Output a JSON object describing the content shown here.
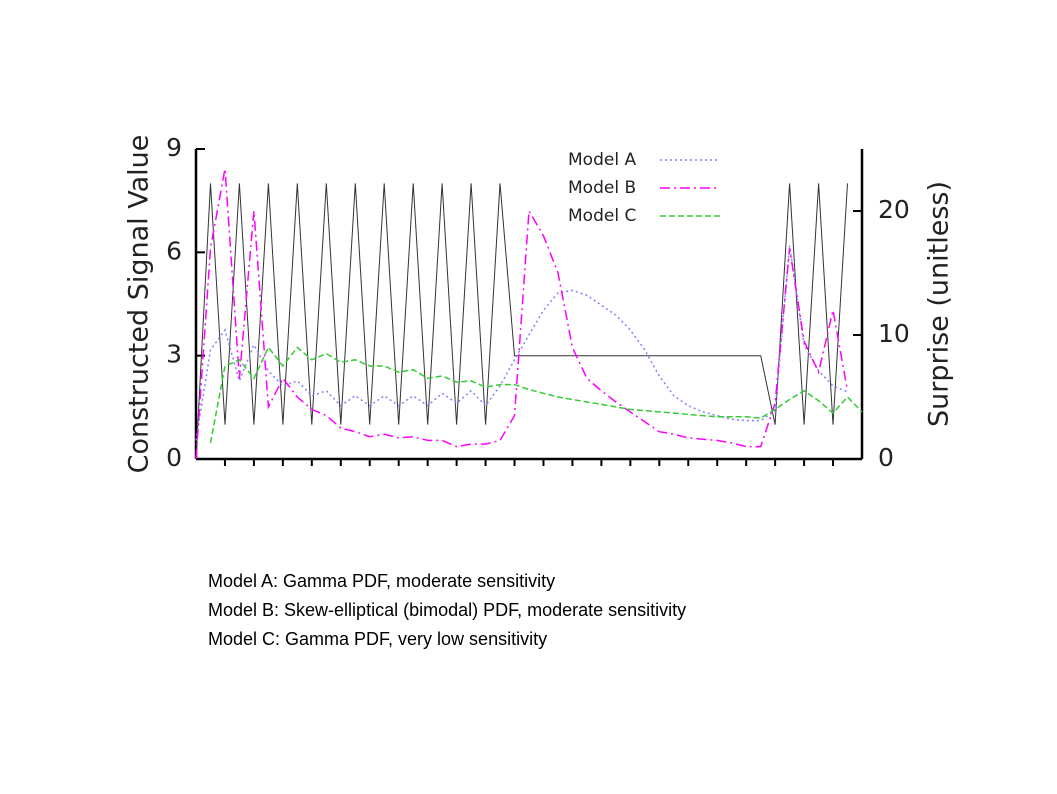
{
  "chart_data": {
    "type": "line",
    "ylabel": "Constructed Signal Value",
    "y2label": "Surprise (unitless)",
    "x": [
      0,
      1,
      2,
      3,
      4,
      5,
      6,
      7,
      8,
      9,
      10,
      11,
      12,
      13,
      14,
      15,
      16,
      17,
      18,
      19,
      20,
      21,
      22,
      23,
      24,
      25,
      26,
      27,
      28,
      29,
      30,
      31,
      32,
      33,
      34,
      35,
      36,
      37,
      38,
      39,
      40,
      41,
      42,
      43,
      44,
      45,
      46
    ],
    "xlim": [
      0,
      46
    ],
    "xticks": [
      2,
      4,
      6,
      8,
      10,
      12,
      14,
      16,
      18,
      20,
      22,
      24,
      26,
      28,
      30,
      32,
      34,
      36,
      38,
      40,
      42,
      44
    ],
    "ylim": [
      0,
      9
    ],
    "yticks": [
      0,
      3,
      6,
      9
    ],
    "y2lim": [
      0,
      25
    ],
    "y2ticks": [
      0,
      10,
      20
    ],
    "legend": "upper right",
    "series": [
      {
        "color": "#333333",
        "dash": "solid",
        "axis": "y",
        "values": [
          0,
          8,
          1,
          8,
          1,
          8,
          1,
          8,
          1,
          8,
          1,
          8,
          1,
          8,
          1,
          8,
          1,
          8,
          1,
          8,
          1,
          8,
          3,
          3,
          3,
          3,
          3,
          3,
          3,
          3,
          3,
          3,
          3,
          3,
          3,
          3,
          3,
          3,
          3,
          3,
          1,
          8,
          1,
          8,
          1,
          8,
          null
        ]
      },
      {
        "name": "Model A",
        "color": "#8080ff",
        "dash": "dotted",
        "axis": "y2",
        "values": [
          1.5,
          8.8,
          10.4,
          6.3,
          9.2,
          7.1,
          5.9,
          6.3,
          5.1,
          5.5,
          4.3,
          5.1,
          4.3,
          5.1,
          4.3,
          5.1,
          4.3,
          5.3,
          4.5,
          5.5,
          4.3,
          5.9,
          8.0,
          10.0,
          12.0,
          13.4,
          13.6,
          13.2,
          12.4,
          11.6,
          10.4,
          8.8,
          6.7,
          5.1,
          4.3,
          3.8,
          3.5,
          3.2,
          3.1,
          3.1,
          3.9,
          17.2,
          9.2,
          7.1,
          5.9,
          5.4,
          null
        ]
      },
      {
        "name": "Model B",
        "color": "#ff00ff",
        "dash": "dashdot",
        "axis": "y2",
        "values": [
          0,
          17,
          23.4,
          6.5,
          20,
          4.2,
          6.5,
          5,
          4,
          3.5,
          2.5,
          2.2,
          1.8,
          2.0,
          1.7,
          1.8,
          1.5,
          1.5,
          1.0,
          1.2,
          1.2,
          1.5,
          3.5,
          20,
          18,
          15,
          9,
          6.5,
          5.5,
          4.6,
          3.8,
          3.0,
          2.2,
          2.0,
          1.7,
          1.6,
          1.5,
          1.3,
          1.0,
          1.0,
          4.5,
          17,
          9.5,
          7,
          12,
          5.5,
          null
        ]
      },
      {
        "name": "Model C",
        "color": "#33cc33",
        "dash": "dashed",
        "axis": "y2",
        "values": [
          null,
          1.3,
          7.5,
          8.0,
          6.5,
          9.0,
          7.5,
          9.0,
          8.0,
          8.5,
          7.8,
          8.0,
          7.5,
          7.5,
          7.0,
          7.2,
          6.5,
          6.7,
          6.2,
          6.3,
          5.8,
          6.0,
          6.0,
          5.6,
          5.3,
          5.0,
          4.8,
          4.6,
          4.4,
          4.2,
          4.0,
          3.9,
          3.8,
          3.7,
          3.6,
          3.5,
          3.4,
          3.4,
          3.4,
          3.3,
          4.0,
          4.8,
          5.5,
          4.7,
          3.7,
          5.0,
          3.8
        ]
      }
    ]
  },
  "notes": [
    "Model A: Gamma PDF, moderate sensitivity",
    "Model B: Skew-elliptical (bimodal) PDF, moderate sensitivity",
    "Model C: Gamma PDF, very low sensitivity"
  ]
}
